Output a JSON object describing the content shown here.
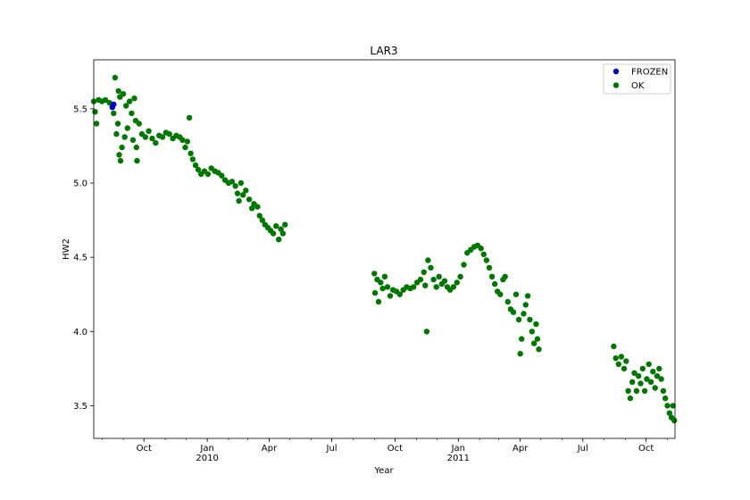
{
  "chart_data": {
    "type": "scatter",
    "title": "LAR3",
    "xlabel": "Year",
    "ylabel": "HW2",
    "xlim": [
      "2009-07-20",
      "2011-11-12"
    ],
    "ylim": [
      3.28,
      5.83
    ],
    "grid": false,
    "legend_position": "top-right",
    "y_ticks": [
      {
        "value": 3.5,
        "label": "3.5"
      },
      {
        "value": 4.0,
        "label": "4.0"
      },
      {
        "value": 4.5,
        "label": "4.5"
      },
      {
        "value": 5.0,
        "label": "5.0"
      },
      {
        "value": 5.5,
        "label": "5.5"
      }
    ],
    "x_ticks": [
      {
        "date": "2009-10-01",
        "label": "Oct",
        "sublabel": ""
      },
      {
        "date": "2010-01-01",
        "label": "Jan",
        "sublabel": "2010"
      },
      {
        "date": "2010-04-01",
        "label": "Apr",
        "sublabel": ""
      },
      {
        "date": "2010-07-01",
        "label": "Jul",
        "sublabel": ""
      },
      {
        "date": "2010-10-01",
        "label": "Oct",
        "sublabel": ""
      },
      {
        "date": "2011-01-01",
        "label": "Jan",
        "sublabel": "2011"
      },
      {
        "date": "2011-04-01",
        "label": "Apr",
        "sublabel": ""
      },
      {
        "date": "2011-07-01",
        "label": "Jul",
        "sublabel": ""
      },
      {
        "date": "2011-10-01",
        "label": "Oct",
        "sublabel": ""
      }
    ],
    "series": [
      {
        "name": "FROZEN",
        "color": "#0000cc",
        "points": [
          [
            "2009-08-16",
            5.51
          ],
          [
            "2009-08-18",
            5.53
          ]
        ]
      },
      {
        "name": "OK",
        "color": "#007700",
        "points": [
          [
            "2009-07-20",
            5.55
          ],
          [
            "2009-07-22",
            5.48
          ],
          [
            "2009-07-24",
            5.4
          ],
          [
            "2009-07-27",
            5.56
          ],
          [
            "2009-08-01",
            5.55
          ],
          [
            "2009-08-06",
            5.56
          ],
          [
            "2009-08-12",
            5.54
          ],
          [
            "2009-08-18",
            5.47
          ],
          [
            "2009-08-20",
            5.71
          ],
          [
            "2009-08-22",
            5.33
          ],
          [
            "2009-08-24",
            5.4
          ],
          [
            "2009-08-25",
            5.62
          ],
          [
            "2009-08-26",
            5.19
          ],
          [
            "2009-08-27",
            5.58
          ],
          [
            "2009-08-28",
            5.15
          ],
          [
            "2009-08-30",
            5.24
          ],
          [
            "2009-09-01",
            5.6
          ],
          [
            "2009-09-03",
            5.31
          ],
          [
            "2009-09-05",
            5.52
          ],
          [
            "2009-09-07",
            5.37
          ],
          [
            "2009-09-10",
            5.55
          ],
          [
            "2009-09-13",
            5.47
          ],
          [
            "2009-09-15",
            5.29
          ],
          [
            "2009-09-17",
            5.57
          ],
          [
            "2009-09-19",
            5.42
          ],
          [
            "2009-09-20",
            5.24
          ],
          [
            "2009-09-21",
            5.15
          ],
          [
            "2009-09-24",
            5.4
          ],
          [
            "2009-09-28",
            5.33
          ],
          [
            "2009-10-03",
            5.31
          ],
          [
            "2009-10-08",
            5.35
          ],
          [
            "2009-10-13",
            5.3
          ],
          [
            "2009-10-18",
            5.27
          ],
          [
            "2009-10-23",
            5.32
          ],
          [
            "2009-10-28",
            5.31
          ],
          [
            "2009-11-02",
            5.34
          ],
          [
            "2009-11-07",
            5.33
          ],
          [
            "2009-11-12",
            5.3
          ],
          [
            "2009-11-17",
            5.32
          ],
          [
            "2009-11-22",
            5.31
          ],
          [
            "2009-11-26",
            5.29
          ],
          [
            "2009-11-30",
            5.24
          ],
          [
            "2009-12-03",
            5.28
          ],
          [
            "2009-12-06",
            5.44
          ],
          [
            "2009-12-08",
            5.2
          ],
          [
            "2009-12-11",
            5.16
          ],
          [
            "2009-12-15",
            5.12
          ],
          [
            "2009-12-19",
            5.09
          ],
          [
            "2009-12-23",
            5.06
          ],
          [
            "2009-12-28",
            5.08
          ],
          [
            "2010-01-02",
            5.06
          ],
          [
            "2010-01-07",
            5.1
          ],
          [
            "2010-01-12",
            5.08
          ],
          [
            "2010-01-17",
            5.07
          ],
          [
            "2010-01-22",
            5.05
          ],
          [
            "2010-01-27",
            5.02
          ],
          [
            "2010-02-01",
            5.0
          ],
          [
            "2010-02-06",
            5.01
          ],
          [
            "2010-02-11",
            4.98
          ],
          [
            "2010-02-14",
            4.93
          ],
          [
            "2010-02-16",
            4.88
          ],
          [
            "2010-02-19",
            5.0
          ],
          [
            "2010-02-22",
            4.92
          ],
          [
            "2010-02-26",
            4.95
          ],
          [
            "2010-03-03",
            4.89
          ],
          [
            "2010-03-07",
            4.83
          ],
          [
            "2010-03-10",
            4.86
          ],
          [
            "2010-03-15",
            4.84
          ],
          [
            "2010-03-18",
            4.78
          ],
          [
            "2010-03-22",
            4.75
          ],
          [
            "2010-03-26",
            4.72
          ],
          [
            "2010-03-30",
            4.7
          ],
          [
            "2010-04-03",
            4.68
          ],
          [
            "2010-04-07",
            4.66
          ],
          [
            "2010-04-11",
            4.71
          ],
          [
            "2010-04-15",
            4.62
          ],
          [
            "2010-04-18",
            4.69
          ],
          [
            "2010-04-21",
            4.66
          ],
          [
            "2010-04-24",
            4.72
          ],
          [
            "2010-09-01",
            4.39
          ],
          [
            "2010-09-02",
            4.26
          ],
          [
            "2010-09-05",
            4.35
          ],
          [
            "2010-09-07",
            4.2
          ],
          [
            "2010-09-10",
            4.33
          ],
          [
            "2010-09-13",
            4.29
          ],
          [
            "2010-09-16",
            4.37
          ],
          [
            "2010-09-20",
            4.3
          ],
          [
            "2010-09-24",
            4.24
          ],
          [
            "2010-09-28",
            4.28
          ],
          [
            "2010-10-03",
            4.27
          ],
          [
            "2010-10-08",
            4.25
          ],
          [
            "2010-10-13",
            4.28
          ],
          [
            "2010-10-18",
            4.3
          ],
          [
            "2010-10-23",
            4.29
          ],
          [
            "2010-10-28",
            4.3
          ],
          [
            "2010-11-02",
            4.33
          ],
          [
            "2010-11-07",
            4.35
          ],
          [
            "2010-11-12",
            4.4
          ],
          [
            "2010-11-14",
            4.31
          ],
          [
            "2010-11-16",
            4.0
          ],
          [
            "2010-11-18",
            4.48
          ],
          [
            "2010-11-22",
            4.43
          ],
          [
            "2010-11-26",
            4.35
          ],
          [
            "2010-11-30",
            4.3
          ],
          [
            "2010-12-04",
            4.37
          ],
          [
            "2010-12-08",
            4.32
          ],
          [
            "2010-12-12",
            4.34
          ],
          [
            "2010-12-16",
            4.3
          ],
          [
            "2010-12-20",
            4.28
          ],
          [
            "2010-12-25",
            4.3
          ],
          [
            "2010-12-30",
            4.33
          ],
          [
            "2011-01-04",
            4.37
          ],
          [
            "2011-01-09",
            4.45
          ],
          [
            "2011-01-14",
            4.53
          ],
          [
            "2011-01-19",
            4.55
          ],
          [
            "2011-01-24",
            4.57
          ],
          [
            "2011-01-29",
            4.58
          ],
          [
            "2011-02-03",
            4.56
          ],
          [
            "2011-02-07",
            4.52
          ],
          [
            "2011-02-11",
            4.48
          ],
          [
            "2011-02-15",
            4.43
          ],
          [
            "2011-02-19",
            4.37
          ],
          [
            "2011-02-23",
            4.32
          ],
          [
            "2011-02-27",
            4.27
          ],
          [
            "2011-03-03",
            4.25
          ],
          [
            "2011-03-07",
            4.35
          ],
          [
            "2011-03-10",
            4.37
          ],
          [
            "2011-03-14",
            4.2
          ],
          [
            "2011-03-18",
            4.15
          ],
          [
            "2011-03-22",
            4.13
          ],
          [
            "2011-03-26",
            4.25
          ],
          [
            "2011-03-30",
            4.08
          ],
          [
            "2011-04-01",
            3.85
          ],
          [
            "2011-04-03",
            3.95
          ],
          [
            "2011-04-06",
            4.12
          ],
          [
            "2011-04-09",
            4.18
          ],
          [
            "2011-04-12",
            4.24
          ],
          [
            "2011-04-15",
            4.08
          ],
          [
            "2011-04-18",
            4.0
          ],
          [
            "2011-04-21",
            3.92
          ],
          [
            "2011-04-24",
            4.05
          ],
          [
            "2011-04-26",
            3.95
          ],
          [
            "2011-04-28",
            3.88
          ],
          [
            "2011-08-15",
            3.9
          ],
          [
            "2011-08-18",
            3.82
          ],
          [
            "2011-08-22",
            3.78
          ],
          [
            "2011-08-26",
            3.83
          ],
          [
            "2011-08-30",
            3.75
          ],
          [
            "2011-09-02",
            3.8
          ],
          [
            "2011-09-05",
            3.6
          ],
          [
            "2011-09-08",
            3.55
          ],
          [
            "2011-09-11",
            3.66
          ],
          [
            "2011-09-14",
            3.72
          ],
          [
            "2011-09-17",
            3.6
          ],
          [
            "2011-09-20",
            3.7
          ],
          [
            "2011-09-23",
            3.65
          ],
          [
            "2011-09-26",
            3.75
          ],
          [
            "2011-09-29",
            3.6
          ],
          [
            "2011-10-02",
            3.68
          ],
          [
            "2011-10-05",
            3.78
          ],
          [
            "2011-10-08",
            3.66
          ],
          [
            "2011-10-11",
            3.73
          ],
          [
            "2011-10-14",
            3.62
          ],
          [
            "2011-10-17",
            3.7
          ],
          [
            "2011-10-20",
            3.75
          ],
          [
            "2011-10-23",
            3.68
          ],
          [
            "2011-10-26",
            3.6
          ],
          [
            "2011-10-29",
            3.55
          ],
          [
            "2011-11-01",
            3.5
          ],
          [
            "2011-11-04",
            3.45
          ],
          [
            "2011-11-07",
            3.42
          ],
          [
            "2011-11-09",
            3.5
          ],
          [
            "2011-11-11",
            3.4
          ]
        ]
      }
    ]
  }
}
